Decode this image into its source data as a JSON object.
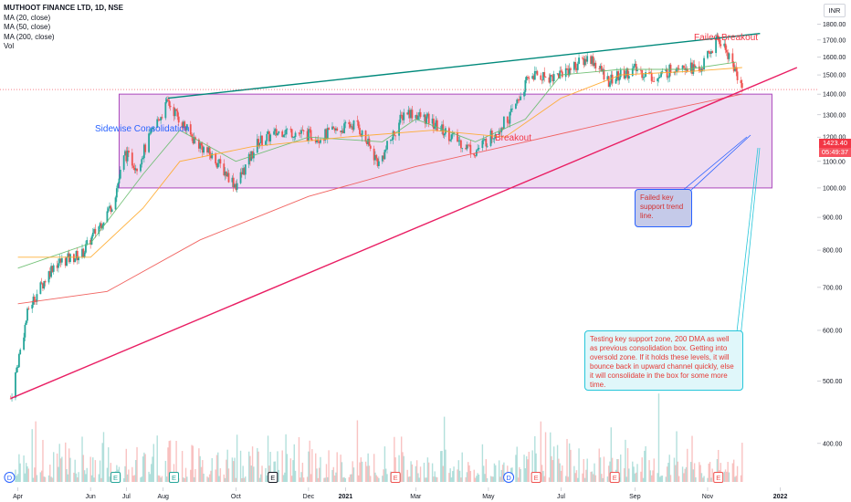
{
  "legend": {
    "symbol": "MUTHOOT FINANCE LTD, 1D, NSE",
    "ma20": "MA (20, close)",
    "ma50": "MA (50, close)",
    "ma200": "MA (200, close)",
    "vol": "Vol"
  },
  "currency": "INR",
  "last_price": "1423.40",
  "countdown": "05:49:37",
  "annotations": {
    "failed_breakout": "Failed Breakout",
    "sideways": "Sidewise Consolidation",
    "breakout": "Breakout",
    "failed_support": "Failed key support trend line.",
    "testing_support": "Testing key support zone, 200 DMA as well as previous consolidation box. Getting into oversold zone. If it holds these levels, it will bounce back in upward channel quickly, else it will consolidate in the box for some more time."
  },
  "colors": {
    "up": "#26a69a",
    "down": "#ef5350",
    "ma20": "#66bb6a",
    "ma50": "#ffa726",
    "ma200": "#ef5350",
    "upper_trend": "#00897b",
    "lower_trend": "#e91e63",
    "box_fill": "#e1bee7",
    "box_border": "#ab47bc",
    "price_line": "#f23645"
  },
  "chart_data": {
    "type": "candlestick",
    "y_axis_ticks": [
      "1800.00",
      "1700.00",
      "1600.00",
      "1500.00",
      "1400.00",
      "1300.00",
      "1200.00",
      "1100.00",
      "1000.00",
      "900.00",
      "800.00",
      "700.00",
      "600.00",
      "500.00",
      "400.00"
    ],
    "x_axis_ticks": [
      "Apr",
      "Jun",
      "Jul",
      "Aug",
      "Oct",
      "Dec",
      "2021",
      "Mar",
      "May",
      "Jul",
      "Sep",
      "Nov",
      "2022"
    ],
    "ylim": [
      360,
      1850
    ],
    "log_scale": true,
    "price_path": [
      {
        "date": "2020-03-26",
        "close": 470
      },
      {
        "date": "2020-04-10",
        "close": 650
      },
      {
        "date": "2020-05-01",
        "close": 760
      },
      {
        "date": "2020-05-25",
        "close": 790
      },
      {
        "date": "2020-06-20",
        "close": 950
      },
      {
        "date": "2020-06-30",
        "close": 1130
      },
      {
        "date": "2020-07-10",
        "close": 1080
      },
      {
        "date": "2020-07-25",
        "close": 1250
      },
      {
        "date": "2020-08-05",
        "close": 1360
      },
      {
        "date": "2020-08-25",
        "close": 1200
      },
      {
        "date": "2020-09-15",
        "close": 1100
      },
      {
        "date": "2020-10-01",
        "close": 1010
      },
      {
        "date": "2020-10-20",
        "close": 1180
      },
      {
        "date": "2020-11-10",
        "close": 1230
      },
      {
        "date": "2020-12-10",
        "close": 1200
      },
      {
        "date": "2021-01-10",
        "close": 1260
      },
      {
        "date": "2021-01-29",
        "close": 1090
      },
      {
        "date": "2021-02-20",
        "close": 1320
      },
      {
        "date": "2021-03-10",
        "close": 1280
      },
      {
        "date": "2021-04-01",
        "close": 1200
      },
      {
        "date": "2021-04-20",
        "close": 1140
      },
      {
        "date": "2021-05-08",
        "close": 1230
      },
      {
        "date": "2021-05-20",
        "close": 1300
      },
      {
        "date": "2021-06-05",
        "close": 1500
      },
      {
        "date": "2021-06-25",
        "close": 1490
      },
      {
        "date": "2021-07-15",
        "close": 1560
      },
      {
        "date": "2021-07-25",
        "close": 1600
      },
      {
        "date": "2021-08-10",
        "close": 1470
      },
      {
        "date": "2021-09-01",
        "close": 1530
      },
      {
        "date": "2021-09-20",
        "close": 1480
      },
      {
        "date": "2021-10-10",
        "close": 1570
      },
      {
        "date": "2021-10-25",
        "close": 1520
      },
      {
        "date": "2021-11-10",
        "close": 1710
      },
      {
        "date": "2021-11-20",
        "close": 1600
      },
      {
        "date": "2021-11-30",
        "close": 1423.4
      }
    ],
    "moving_averages": [
      {
        "name": "MA (20, close)",
        "values": [
          {
            "date": "2020-04-01",
            "value": 750
          },
          {
            "date": "2020-06-01",
            "value": 820
          },
          {
            "date": "2020-07-15",
            "value": 1050
          },
          {
            "date": "2020-08-15",
            "value": 1230
          },
          {
            "date": "2020-10-01",
            "value": 1100
          },
          {
            "date": "2020-12-01",
            "value": 1200
          },
          {
            "date": "2021-02-01",
            "value": 1180
          },
          {
            "date": "2021-03-01",
            "value": 1280
          },
          {
            "date": "2021-04-20",
            "value": 1180
          },
          {
            "date": "2021-06-01",
            "value": 1280
          },
          {
            "date": "2021-07-01",
            "value": 1500
          },
          {
            "date": "2021-08-20",
            "value": 1530
          },
          {
            "date": "2021-10-15",
            "value": 1530
          },
          {
            "date": "2021-11-25",
            "value": 1570
          }
        ]
      },
      {
        "name": "MA (50, close)",
        "values": [
          {
            "date": "2020-04-01",
            "value": 780
          },
          {
            "date": "2020-06-01",
            "value": 780
          },
          {
            "date": "2020-07-15",
            "value": 930
          },
          {
            "date": "2020-08-15",
            "value": 1100
          },
          {
            "date": "2020-10-15",
            "value": 1160
          },
          {
            "date": "2021-01-01",
            "value": 1200
          },
          {
            "date": "2021-03-15",
            "value": 1230
          },
          {
            "date": "2021-05-15",
            "value": 1200
          },
          {
            "date": "2021-07-01",
            "value": 1380
          },
          {
            "date": "2021-08-20",
            "value": 1500
          },
          {
            "date": "2021-10-20",
            "value": 1520
          },
          {
            "date": "2021-11-30",
            "value": 1540
          }
        ]
      },
      {
        "name": "MA (200, close)",
        "values": [
          {
            "date": "2020-04-01",
            "value": 660
          },
          {
            "date": "2020-06-15",
            "value": 690
          },
          {
            "date": "2020-09-01",
            "value": 830
          },
          {
            "date": "2020-12-01",
            "value": 970
          },
          {
            "date": "2021-03-01",
            "value": 1080
          },
          {
            "date": "2021-06-01",
            "value": 1180
          },
          {
            "date": "2021-09-01",
            "value": 1290
          },
          {
            "date": "2021-11-30",
            "value": 1400
          }
        ]
      }
    ],
    "trendlines": [
      {
        "name": "upper",
        "from": {
          "date": "2020-08-05",
          "value": 1380
        },
        "to": {
          "date": "2021-12-15",
          "value": 1740
        }
      },
      {
        "name": "lower",
        "from": {
          "date": "2020-03-26",
          "value": 470
        },
        "to": {
          "date": "2022-01-15",
          "value": 1540
        }
      }
    ],
    "consolidation_box": {
      "from_date": "2020-06-25",
      "to_date": "2021-12-25",
      "low": 1000,
      "high": 1400
    },
    "event_markers": [
      {
        "date": "2020-03-25",
        "label": "D",
        "color": "#2962ff"
      },
      {
        "date": "2020-06-22",
        "label": "E",
        "color": "#26a69a"
      },
      {
        "date": "2020-08-10",
        "label": "E",
        "color": "#26a69a"
      },
      {
        "date": "2020-11-01",
        "label": "E",
        "color": "#131722"
      },
      {
        "date": "2021-02-12",
        "label": "E",
        "color": "#ef5350"
      },
      {
        "date": "2021-05-18",
        "label": "D",
        "color": "#2962ff"
      },
      {
        "date": "2021-06-10",
        "label": "E",
        "color": "#ef5350"
      },
      {
        "date": "2021-08-15",
        "label": "E",
        "color": "#ef5350"
      },
      {
        "date": "2021-11-10",
        "label": "E",
        "color": "#ef5350"
      }
    ]
  }
}
